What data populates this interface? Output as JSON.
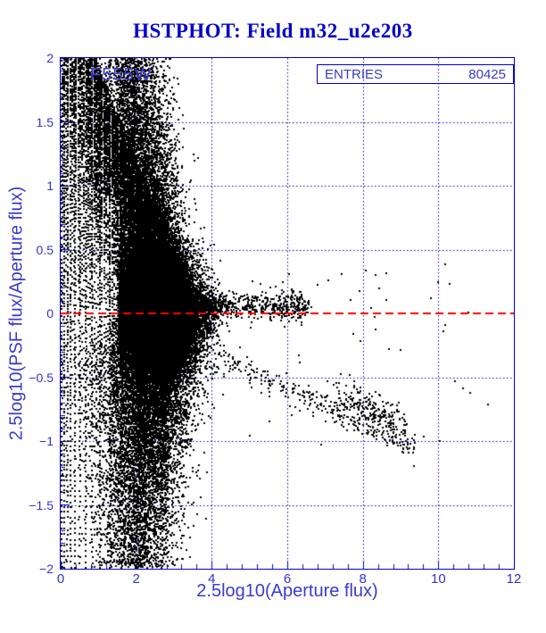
{
  "header": {
    "title": "HSTPHOT: Field m32_u2e203",
    "title_color": "#0000cc"
  },
  "plot": {
    "detector_label": "F555W",
    "stats_box": {
      "label": "ENTRIES",
      "value": "80425"
    },
    "frame_color": "#0000cc",
    "grid_color": "#0000cc",
    "tick_color": "#0000cc",
    "text_color": "#3a3ad0",
    "point_color": "#000000",
    "zero_line_color": "#ff0000"
  },
  "chart_data": {
    "type": "scatter",
    "title": "HSTPHOT: Field m32_u2e203",
    "xlabel": "2.5log10(Aperture flux)",
    "ylabel": "2.5log10(PSF flux/Aperture flux)",
    "xlim": [
      0,
      12
    ],
    "ylim": [
      -2,
      2
    ],
    "x_ticks": [
      {
        "v": 0,
        "label": "0"
      },
      {
        "v": 2,
        "label": "2"
      },
      {
        "v": 4,
        "label": "4"
      },
      {
        "v": 6,
        "label": "6"
      },
      {
        "v": 8,
        "label": "8"
      },
      {
        "v": 10,
        "label": "10"
      },
      {
        "v": 12,
        "label": "12"
      }
    ],
    "y_ticks": [
      {
        "v": 2,
        "label": "2"
      },
      {
        "v": 1.5,
        "label": "1.5"
      },
      {
        "v": 1,
        "label": "1"
      },
      {
        "v": 0.5,
        "label": "0.5"
      },
      {
        "v": 0,
        "label": "0"
      },
      {
        "v": -0.5,
        "label": "−0.5"
      },
      {
        "v": -1,
        "label": "−1"
      },
      {
        "v": -1.5,
        "label": "−1.5"
      },
      {
        "v": -2,
        "label": "−2"
      }
    ],
    "x_minor_step": 0.4,
    "y_minor_step": 0.1,
    "grid": {
      "style": "dotted",
      "x_lines": [
        2,
        4,
        6,
        8,
        10
      ],
      "y_lines": [
        1.5,
        1,
        0.5,
        -0.5,
        -1,
        -1.5
      ]
    },
    "zero_line": {
      "y": 0,
      "style": "dashed"
    },
    "entries": 80425,
    "point_size": 2,
    "generator": {
      "seed": 1234567,
      "components": [
        {
          "kind": "columns",
          "x": [
            0.02,
            0.1,
            0.19,
            0.28,
            0.39,
            0.52,
            0.67,
            0.85,
            1.06,
            1.32,
            1.63,
            1.98
          ],
          "yRange": [
            -2,
            2
          ],
          "baseStep": 0.028,
          "stepGrow": 0.32,
          "jitter": 0.004,
          "dropout": 0.12
        },
        {
          "kind": "fan",
          "delta": 0.08,
          "kMax": 160,
          "aMin": 0.95,
          "aMax": 14,
          "aFactor": 1.05,
          "xMax": 2.9,
          "yMax": 2.02,
          "dropout": 0.35
        },
        {
          "kind": "gauss",
          "n": 30000,
          "mx": 2.45,
          "sx": 0.52,
          "my": 0.02,
          "sy": 0.21,
          "clip": [
            1.55,
            4.3,
            -0.65,
            0.58
          ]
        },
        {
          "kind": "wing",
          "n": 12000,
          "mx": 2.3,
          "sx": 0.5,
          "clipX": [
            1.5,
            4.9
          ],
          "y0": 0.04,
          "scale": 1.9,
          "xDecay": 0.95,
          "x0": 1.55,
          "yMax": 2.02,
          "sign": 1
        },
        {
          "kind": "wing",
          "n": 10000,
          "mx": 2.5,
          "sx": 0.6,
          "clipX": [
            1.3,
            5.2
          ],
          "y0": 0.04,
          "scale": 1.35,
          "xDecay": 1.4,
          "x0": 1.55,
          "yMax": 2.02,
          "sign": -1
        },
        {
          "kind": "ridge",
          "n": 6000,
          "x0": 2.1,
          "spread": 0.95,
          "xMax": 5.1,
          "tailFrac": 0.05,
          "tailX": [
            4.9,
            6.6
          ],
          "my": 0.055,
          "sy": 0.055
        },
        {
          "kind": "strip",
          "n": 1600,
          "xOff": 0.5,
          "xScale": 1.8,
          "xPow": 0.5,
          "yBase": -0.25,
          "yScale": -1.78,
          "yPow": 1.35
        },
        {
          "kind": "strip",
          "n": 1100,
          "xOff": 0.55,
          "xScale": 1.45,
          "xPow": 0.5,
          "yBase": 0.92,
          "yScale": 1.1,
          "yPow": 1.2
        },
        {
          "kind": "arm",
          "n": 300,
          "x0": 4.1,
          "xLen": 5.3,
          "tPow": 0.85,
          "yA": -0.33,
          "slope": -0.138,
          "sy": 0.05
        },
        {
          "kind": "gaussline",
          "n": 210,
          "mx": 8.25,
          "sx": 0.55,
          "clipX": [
            7.05,
            9.45
          ],
          "yA": -0.62,
          "xRef": 7.1,
          "slope": -0.12,
          "sy": 0.07
        },
        {
          "kind": "sparse",
          "n": 42,
          "x": [
            4.6,
            11.4
          ],
          "groups": [
            {
              "frac": 0.55,
              "my": 0.17,
              "sy": 0.12
            },
            {
              "frac": 0.45,
              "my": -0.5,
              "sy": 0.33
            }
          ]
        },
        {
          "kind": "list",
          "points": [
            [
              10.2,
              0.38
            ],
            [
              11.32,
              -0.72
            ],
            [
              9.62,
              -0.97
            ],
            [
              8.35,
              0.3
            ],
            [
              8.1,
              0.33
            ],
            [
              7.92,
              0.17
            ],
            [
              6.12,
              0.18
            ],
            [
              5.55,
              -0.85
            ],
            [
              5.9,
              0.24
            ],
            [
              10.05,
              -1.0
            ]
          ]
        }
      ]
    }
  }
}
